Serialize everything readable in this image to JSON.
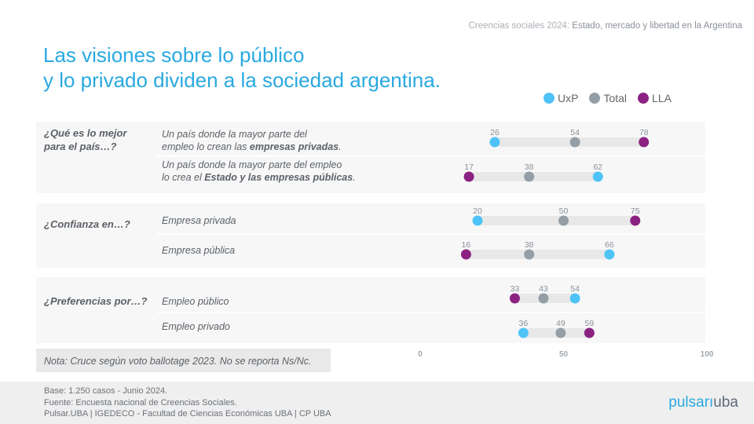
{
  "header": {
    "supertitle_prefix": "Creencias sociales 2024:",
    "supertitle_bold": "Estado, mercado y libertad en la Argentina",
    "title_line1": "Las visiones sobre lo público",
    "title_line2": "y lo privado dividen a la sociedad argentina."
  },
  "colors": {
    "UxP": "#4fc3f7",
    "Total": "#939ea6",
    "LLA": "#8b2282",
    "bar": "#e8e8e8"
  },
  "chart_data": {
    "type": "dot",
    "legend": [
      "UxP",
      "Total",
      "LLA"
    ],
    "legend_placement": "top-right",
    "xlim": [
      0,
      100
    ],
    "xticks": [
      "0",
      "50",
      "100"
    ],
    "groups": [
      {
        "question_line1": "¿Qué es lo mejor",
        "question_line2": "para el país…?",
        "items": [
          {
            "label_line1": "Un país donde la mayor parte del",
            "label_line2_pre": "empleo lo crean las ",
            "label_line2_bold": "empresas privadas",
            "label_line2_post": ".",
            "UxP": 26,
            "Total": 54,
            "LLA": 78
          },
          {
            "label_line1": "Un país donde la mayor parte del empleo",
            "label_line2_pre": "lo crea el ",
            "label_line2_bold": "Estado y las empresas públicas",
            "label_line2_post": ".",
            "UxP": 62,
            "Total": 38,
            "LLA": 17
          }
        ]
      },
      {
        "question_line1": "¿Confianza en…?",
        "items": [
          {
            "label_line1": "Empresa privada",
            "UxP": 20,
            "Total": 50,
            "LLA": 75
          },
          {
            "label_line1": "Empresa pública",
            "UxP": 66,
            "Total": 38,
            "LLA": 16
          }
        ]
      },
      {
        "question_line1": "¿Preferencias por…?",
        "items": [
          {
            "label_line1": "Empleo público",
            "UxP": 54,
            "Total": 43,
            "LLA": 33
          },
          {
            "label_line1": "Empleo privado",
            "UxP": 36,
            "Total": 49,
            "LLA": 59
          }
        ]
      }
    ]
  },
  "note": "Nota: Cruce según voto ballotage 2023. No se reporta Ns/Nc.",
  "footer": {
    "line1": "Base: 1.250 casos - Junio 2024.",
    "line2": "Fuente: Encuesta nacional de Creencias Sociales.",
    "line3": "Pulsar.UBA | IGEDECO - Facultad de Ciencias Económicas UBA | CP UBA"
  },
  "logo": {
    "part1": "pulsar",
    "part2": "uba"
  }
}
